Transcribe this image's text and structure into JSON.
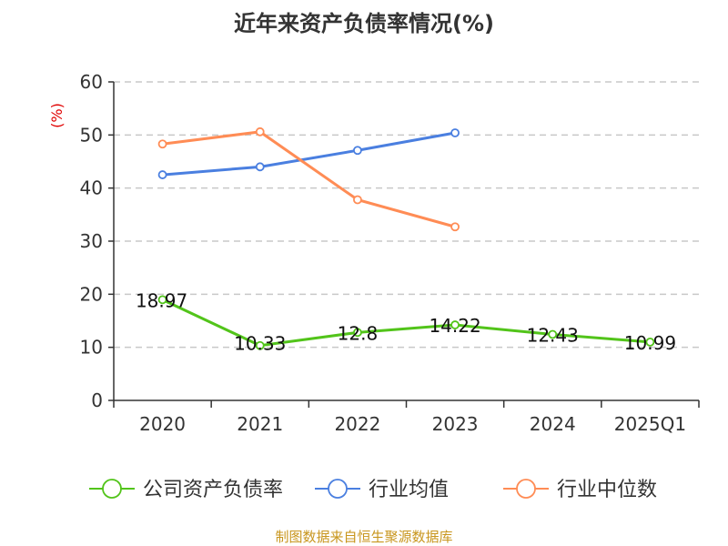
{
  "chart_data": {
    "type": "line",
    "title": "近年来资产负债率情况(%)",
    "ylabel": "(%)",
    "xlabel": "",
    "ylim": [
      0,
      60
    ],
    "yticks": [
      0,
      10,
      20,
      30,
      40,
      50,
      60
    ],
    "grid": true,
    "legend_position": "bottom",
    "categories": [
      "2020",
      "2021",
      "2022",
      "2023",
      "2024",
      "2025Q1"
    ],
    "series": [
      {
        "name": "公司资产负债率",
        "color": "#52c41a",
        "values": [
          18.97,
          10.33,
          12.8,
          14.22,
          12.43,
          10.99
        ],
        "labels": [
          "18.97",
          "10.33",
          "12.8",
          "14.22",
          "12.43",
          "10.99"
        ]
      },
      {
        "name": "行业均值",
        "color": "#4a7fe0",
        "values": [
          42.5,
          44.0,
          47.1,
          50.4,
          null,
          null
        ]
      },
      {
        "name": "行业中位数",
        "color": "#ff8c55",
        "values": [
          48.3,
          50.6,
          37.8,
          32.7,
          null,
          null
        ]
      }
    ]
  },
  "footer": "制图数据来自恒生聚源数据库"
}
